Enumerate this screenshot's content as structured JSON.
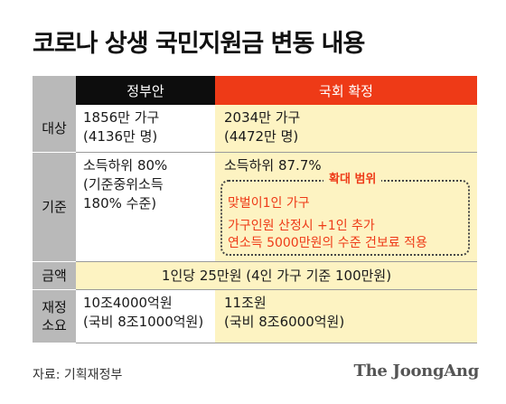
{
  "title": "코로나 상생 국민지원금 변동 내용",
  "header": {
    "gov": "정부안",
    "nat": "국회 확정"
  },
  "rows": {
    "target": {
      "label": "대상",
      "gov": [
        "1856만 가구",
        "(4136만 명)"
      ],
      "nat": [
        "2034만 가구",
        "(4472만 명)"
      ]
    },
    "criteria": {
      "label": "기준",
      "gov": [
        "소득하위 80%",
        "(기준중위소득",
        "180% 수준)"
      ],
      "nat": "소득하위 87.7%",
      "expand_label": "확대 범위",
      "expand_items": [
        "맞벌이1인 가구",
        "가구인원 산정시 +1인 추가",
        "연소득 5000만원의 수준 건보료 적용"
      ]
    },
    "amount": {
      "label": "금액",
      "value": "1인당 25만원 (4인 가구 기준 100만원)"
    },
    "fund": {
      "label": [
        "재정",
        "소요"
      ],
      "gov": [
        "10조4000억원",
        "(국비 8조1000억원)"
      ],
      "nat": [
        "11조원",
        "(국비 8조6000억원)"
      ]
    }
  },
  "source": "자료: 기획재정부",
  "brand": "The JoongAng",
  "colors": {
    "accent": "#ee3a17",
    "header_dark": "#0d0d0d",
    "label_gray": "#b9b9b9",
    "highlight": "#fdf3c2"
  }
}
